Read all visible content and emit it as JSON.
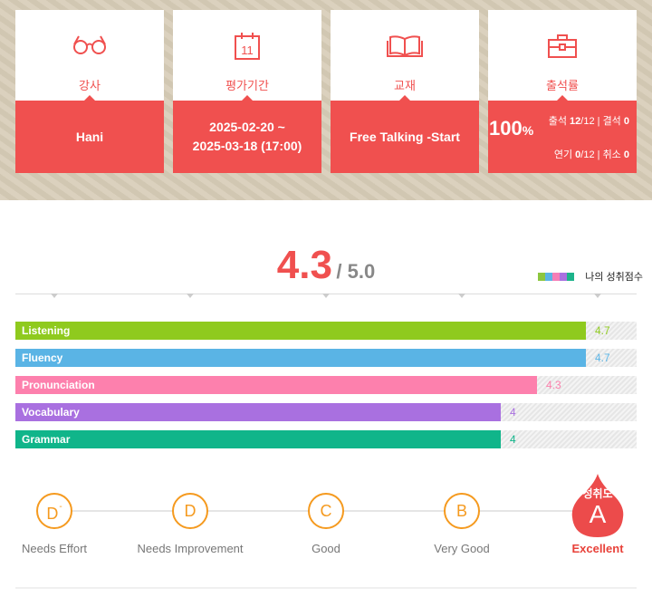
{
  "cards": {
    "teacher": {
      "label": "강사",
      "value": "Hani"
    },
    "period": {
      "label": "평가기간",
      "value_line1": "2025-02-20 ~",
      "value_line2": "2025-03-18 (17:00)",
      "icon_day": "11"
    },
    "textbook": {
      "label": "교재",
      "value": "Free Talking -Start"
    },
    "attendance": {
      "label": "출석률",
      "percent": "100",
      "percent_unit": "%",
      "attend_label": "출석",
      "attend_value": "12",
      "attend_total": "/12",
      "absent_label": "결석",
      "absent_value": "0",
      "postpone_label": "연기",
      "postpone_value": "0",
      "postpone_total": "/12",
      "cancel_label": "취소",
      "cancel_value": "0",
      "separator": "|"
    }
  },
  "score": {
    "value": "4.3",
    "max": "/ 5.0"
  },
  "legend": {
    "label": "나의 성취점수",
    "swatches": [
      "#8cc63f",
      "#5ab4e5",
      "#f57eb6",
      "#a970e0",
      "#1cb38a"
    ]
  },
  "chart_data": {
    "type": "bar",
    "orientation": "horizontal",
    "xlim": [
      0,
      5
    ],
    "categories": [
      "Listening",
      "Fluency",
      "Pronunciation",
      "Vocabulary",
      "Grammar"
    ],
    "values": [
      4.7,
      4.7,
      4.3,
      4,
      4
    ],
    "value_labels": [
      "4.7",
      "4.7",
      "4.3",
      "4",
      "4"
    ],
    "colors": [
      "#8fca1e",
      "#5ab4e5",
      "#fd80ad",
      "#a970e0",
      "#10b58a"
    ]
  },
  "grades": [
    {
      "letter": "D",
      "sup": "-",
      "label": "Needs Effort"
    },
    {
      "letter": "D",
      "sup": "",
      "label": "Needs Improvement"
    },
    {
      "letter": "C",
      "sup": "",
      "label": "Good"
    },
    {
      "letter": "B",
      "sup": "",
      "label": "Very Good"
    },
    {
      "letter": "A",
      "sup": "",
      "label": "Excellent"
    }
  ],
  "current_grade": {
    "title": "성취도",
    "letter": "A"
  },
  "colors": {
    "accent": "#f0504f",
    "grade": "#f59a1f"
  }
}
